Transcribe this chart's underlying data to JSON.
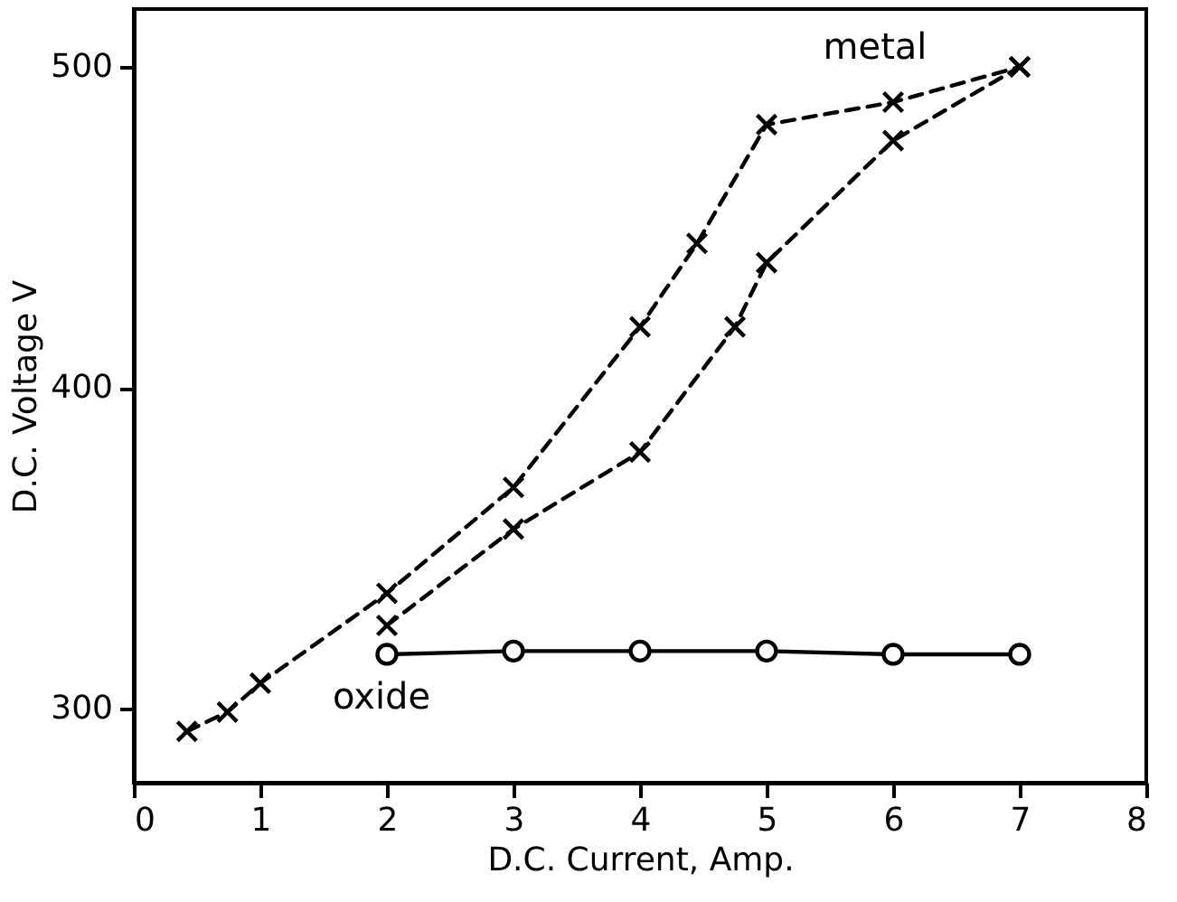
{
  "chart_data": {
    "type": "line",
    "xlabel": "D.C. Current, Amp.",
    "ylabel": "D.C. Voltage V",
    "xlim": [
      0,
      8
    ],
    "xticks": [
      0,
      1,
      2,
      3,
      4,
      5,
      6,
      7,
      8
    ],
    "ylim": [
      277,
      518
    ],
    "yticks": [
      300,
      400,
      500
    ],
    "grid": false,
    "series": [
      {
        "name": "metal",
        "color": "#000000",
        "marker": "cross",
        "line_style": "dashed",
        "x": [
          0.42,
          0.74,
          1,
          2,
          3,
          4,
          4.45,
          5,
          6,
          7
        ],
        "values": [
          293,
          299,
          308,
          336,
          369,
          419,
          445,
          482,
          489,
          500
        ]
      },
      {
        "color": "#000000",
        "marker": "cross",
        "line_style": "dashed",
        "x": [
          2,
          3,
          4,
          4.75,
          5,
          6,
          7
        ],
        "values": [
          326,
          356,
          380,
          419,
          439,
          477,
          500
        ]
      },
      {
        "name": "oxide",
        "color": "#000000",
        "marker": "circle",
        "line_style": "solid",
        "x": [
          2,
          3,
          4,
          5,
          6,
          7
        ],
        "values": [
          317,
          318,
          318,
          318,
          317,
          317
        ]
      }
    ]
  }
}
